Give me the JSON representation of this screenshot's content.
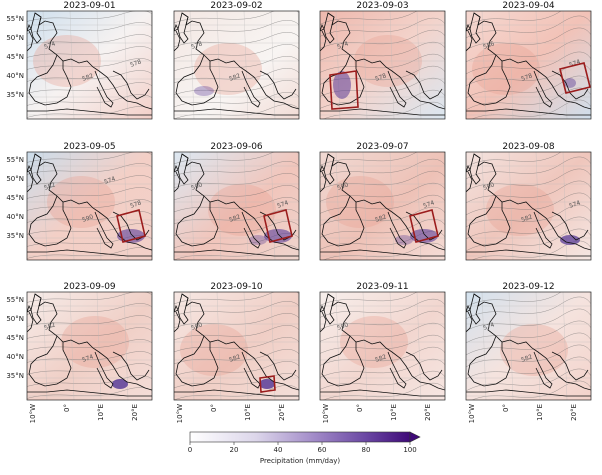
{
  "panels": [
    {
      "date": "2023-09-01",
      "contours": [
        "574",
        "582",
        "578"
      ],
      "box": null,
      "precip": []
    },
    {
      "date": "2023-09-02",
      "contours": [
        "578",
        "582"
      ],
      "box": null,
      "precip": [
        "west"
      ]
    },
    {
      "date": "2023-09-03",
      "contours": [
        "574",
        "578"
      ],
      "box": "iberia",
      "precip": [
        "iberia"
      ]
    },
    {
      "date": "2023-09-04",
      "contours": [
        "586",
        "578",
        "574"
      ],
      "box": "balkans",
      "precip": [
        "balkans-small"
      ]
    },
    {
      "date": "2023-09-05",
      "contours": [
        "582",
        "590",
        "578",
        "574"
      ],
      "box": "italy",
      "precip": [
        "italy"
      ]
    },
    {
      "date": "2023-09-06",
      "contours": [
        "590",
        "582",
        "574"
      ],
      "box": "italy",
      "precip": [
        "italy",
        "sardinia"
      ]
    },
    {
      "date": "2023-09-07",
      "contours": [
        "590",
        "582",
        "574"
      ],
      "box": "italy",
      "precip": [
        "italy",
        "sardinia"
      ]
    },
    {
      "date": "2023-09-08",
      "contours": [
        "590",
        "582",
        "574"
      ],
      "box": null,
      "precip": [
        "ionian"
      ]
    },
    {
      "date": "2023-09-09",
      "contours": [
        "582",
        "574"
      ],
      "box": null,
      "precip": [
        "libya"
      ]
    },
    {
      "date": "2023-09-10",
      "contours": [
        "590",
        "582"
      ],
      "box": "libya",
      "precip": [
        "libya"
      ]
    },
    {
      "date": "2023-09-11",
      "contours": [
        "590",
        "582"
      ],
      "box": null,
      "precip": []
    },
    {
      "date": "2023-09-12",
      "contours": [
        "574",
        "582"
      ],
      "box": null,
      "precip": []
    }
  ],
  "lat_labels": [
    "55°N",
    "50°N",
    "45°N",
    "40°N",
    "35°N"
  ],
  "lon_labels": [
    "10°W",
    "0°",
    "10°E",
    "20°E"
  ],
  "colorbar": {
    "label": "Precipitation (mm/day)",
    "ticks": [
      "0",
      "20",
      "40",
      "60",
      "80",
      "100"
    ],
    "min": 0,
    "max": 100
  },
  "colors": {
    "warm": "#e8a092",
    "cold": "#8fb3d3",
    "precip": "#5b3d99",
    "box": "#9b1c1c"
  }
}
